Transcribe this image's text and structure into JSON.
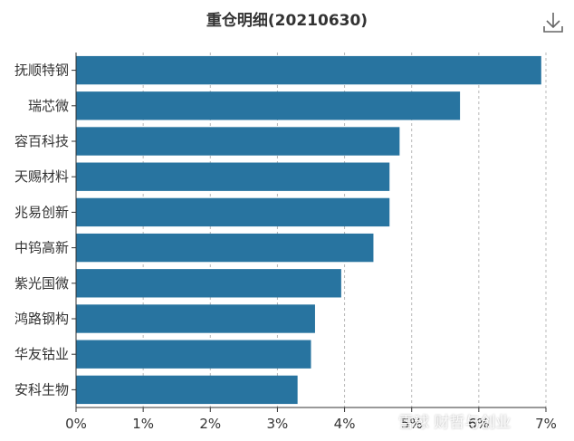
{
  "chart_data": {
    "type": "bar",
    "orientation": "horizontal",
    "title": "重仓明细(20210630)",
    "categories": [
      "抚顺特钢",
      "瑞芯微",
      "容百科技",
      "天赐材料",
      "兆易创新",
      "中钨高新",
      "紫光国微",
      "鸿路钢构",
      "华友钴业",
      "安科生物"
    ],
    "values": [
      6.93,
      5.72,
      4.82,
      4.67,
      4.67,
      4.43,
      3.95,
      3.56,
      3.5,
      3.3
    ],
    "x_ticks": [
      "0%",
      "1%",
      "2%",
      "3%",
      "4%",
      "5%",
      "6%",
      "7%"
    ],
    "xlim": [
      0,
      7
    ],
    "grid": "vertical-dashed",
    "bar_color": "#2874a0",
    "xlabel": "",
    "ylabel": ""
  },
  "toolbar": {
    "download_icon": "download-icon"
  },
  "watermark": {
    "text": "雪球 财哲与创业"
  }
}
